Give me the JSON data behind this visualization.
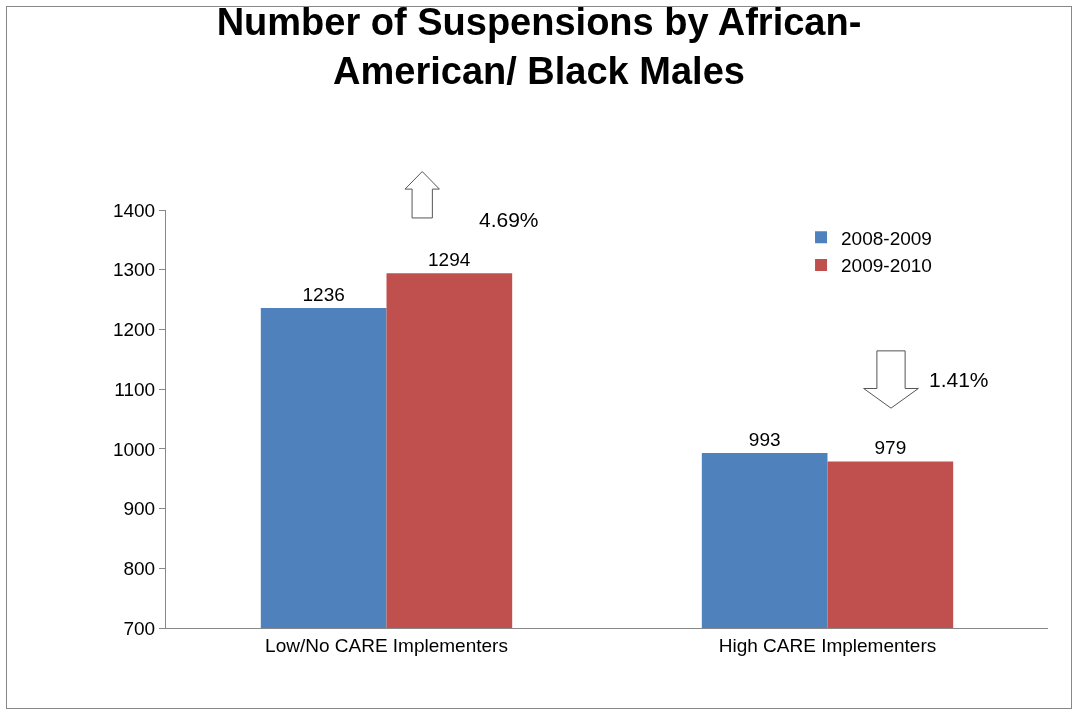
{
  "chart_data": {
    "type": "bar",
    "title": "Number of Suspensions by African-\nAmerican/ Black Males",
    "categories": [
      "Low/No CARE Implementers",
      "High CARE Implementers"
    ],
    "series": [
      {
        "name": "2008-2009",
        "color": "#4f81bd",
        "values": [
          1236,
          993
        ]
      },
      {
        "name": "2009-2010",
        "color": "#c0504d",
        "values": [
          1294,
          979
        ]
      }
    ],
    "ylim": [
      700,
      1400
    ],
    "yticks": [
      700,
      800,
      900,
      1000,
      1100,
      1200,
      1300,
      1400
    ],
    "grid": false,
    "legend": "top right",
    "data_labels": true,
    "annotations": [
      "4.69%",
      "1.41%"
    ]
  }
}
